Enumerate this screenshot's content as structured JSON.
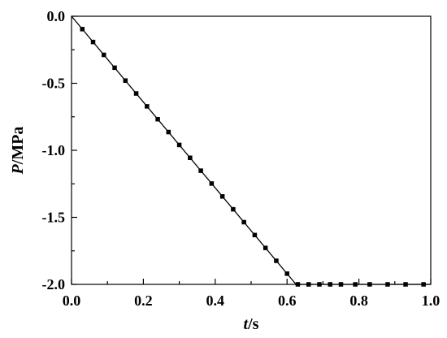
{
  "chart_data": {
    "type": "line",
    "xlabel": {
      "var": "t",
      "unit": "/s"
    },
    "ylabel": {
      "var": "P",
      "unit": "/MPa"
    },
    "xlim": [
      0.0,
      1.0
    ],
    "ylim": [
      -2.0,
      0.0
    ],
    "x_ticks": [
      0.0,
      0.2,
      0.4,
      0.6,
      0.8,
      1.0
    ],
    "x_tick_labels": [
      "0.0",
      "0.2",
      "0.4",
      "0.6",
      "0.8",
      "1.0"
    ],
    "y_ticks": [
      0.0,
      -0.5,
      -1.0,
      -1.5,
      -2.0
    ],
    "y_tick_labels": [
      "0.0",
      "-0.5",
      "-1.0",
      "-1.5",
      "-2.0"
    ],
    "grid": false,
    "legend": "none",
    "series": [
      {
        "line_color": "#000000",
        "marker": "square",
        "line": {
          "x": [
            0.0,
            0.625,
            1.0
          ],
          "y": [
            0.0,
            -2.0,
            -2.0
          ]
        },
        "points": {
          "x": [
            0.03,
            0.06,
            0.09,
            0.12,
            0.15,
            0.18,
            0.21,
            0.24,
            0.27,
            0.3,
            0.33,
            0.36,
            0.39,
            0.42,
            0.45,
            0.48,
            0.51,
            0.54,
            0.57,
            0.6,
            0.63,
            0.66,
            0.69,
            0.72,
            0.75,
            0.79,
            0.83,
            0.88,
            0.93,
            0.98
          ],
          "y": [
            -0.096,
            -0.192,
            -0.288,
            -0.384,
            -0.48,
            -0.576,
            -0.672,
            -0.768,
            -0.864,
            -0.96,
            -1.056,
            -1.152,
            -1.248,
            -1.344,
            -1.44,
            -1.536,
            -1.632,
            -1.728,
            -1.824,
            -1.92,
            -2.0,
            -2.0,
            -2.0,
            -2.0,
            -2.0,
            -2.0,
            -2.0,
            -2.0,
            -2.0,
            -2.0
          ]
        }
      }
    ]
  }
}
